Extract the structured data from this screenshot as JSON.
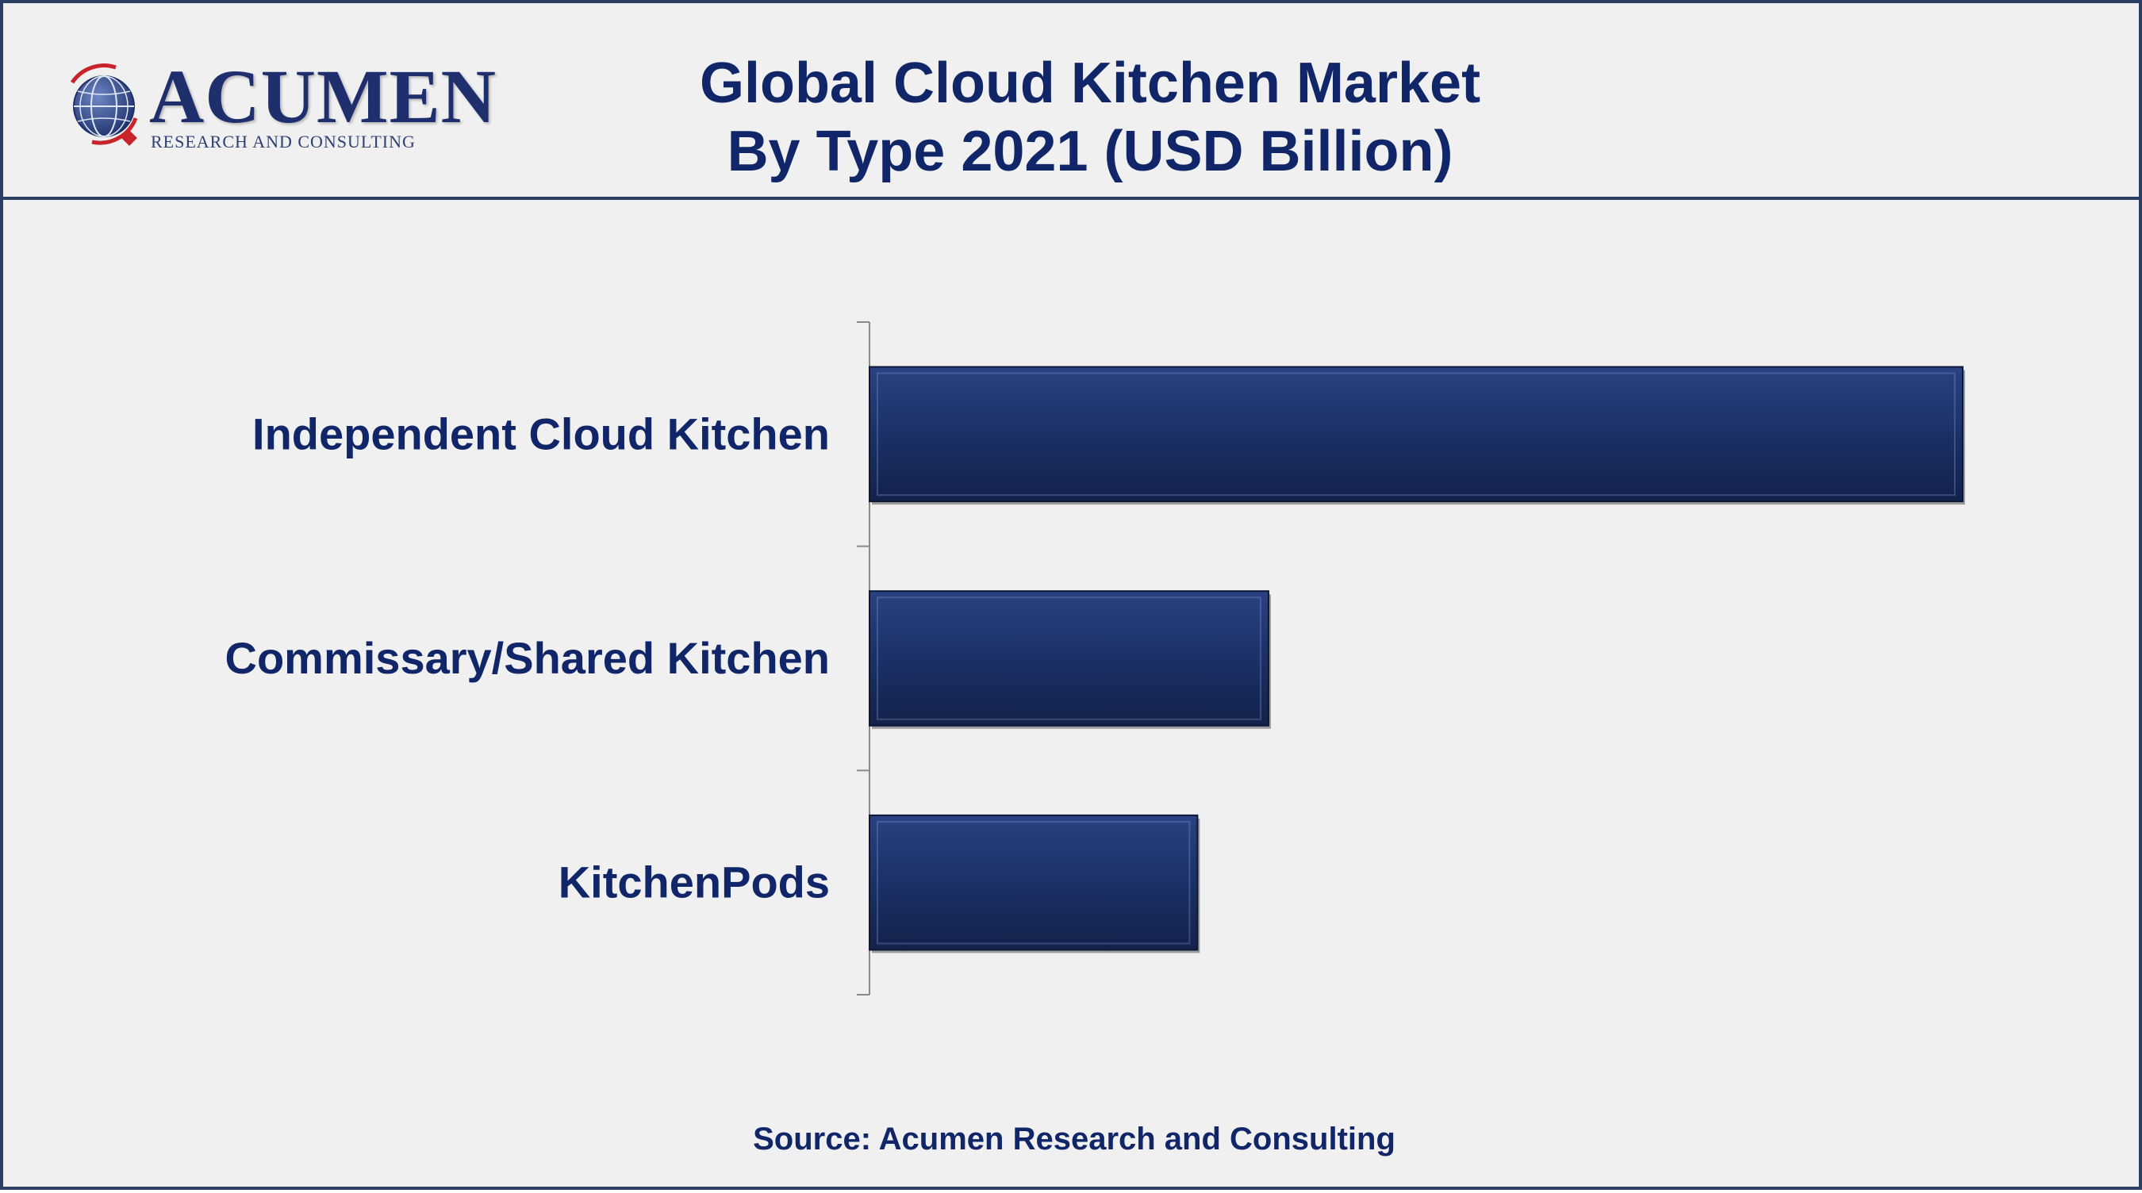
{
  "header": {
    "logo_name": "ACUMEN",
    "logo_tagline": "RESEARCH AND CONSULTING",
    "title_line1": "Global Cloud Kitchen Market",
    "title_line2": "By Type 2021 (USD Billion)"
  },
  "footer": {
    "source": "Source: Acumen Research and Consulting"
  },
  "colors": {
    "bar": "#1c2f63",
    "bar_highlight": "#2c4585",
    "text": "#102668",
    "frame": "#2c3d66",
    "background": "#f0f0f0"
  },
  "chart_data": {
    "type": "bar",
    "orientation": "horizontal",
    "title": "Global Cloud Kitchen Market By Type 2021 (USD Billion)",
    "categories": [
      "Independent Cloud Kitchen",
      "Commissary/Shared Kitchen",
      "KitchenPods"
    ],
    "values": [
      100,
      36.5,
      30
    ],
    "xlim": [
      0,
      100
    ],
    "value_labels_shown": false,
    "grid": false,
    "legend": "none"
  }
}
